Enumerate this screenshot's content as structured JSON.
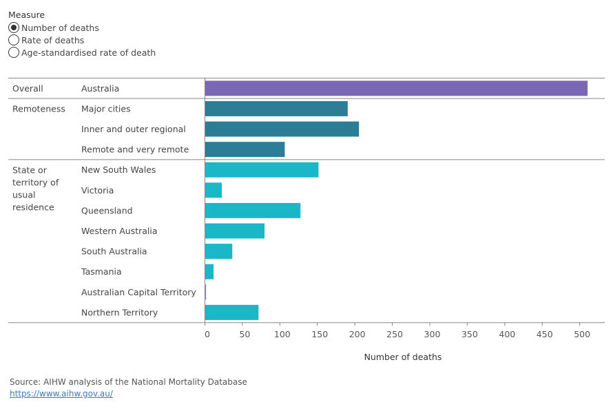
{
  "measure": {
    "title": "Measure",
    "options": [
      {
        "label": "Number of deaths",
        "selected": true
      },
      {
        "label": "Rate of deaths",
        "selected": false
      },
      {
        "label": "Age-standardised rate of death",
        "selected": false
      }
    ]
  },
  "chart_data": {
    "type": "bar",
    "orientation": "horizontal",
    "xlabel": "Number of deaths",
    "xlim": [
      0,
      515
    ],
    "xticks": [
      0,
      50,
      100,
      150,
      200,
      250,
      300,
      350,
      400,
      450,
      500
    ],
    "grid": false,
    "groups": [
      {
        "label": "Overall",
        "color": "#7b68b5",
        "rows": [
          {
            "category": "Australia",
            "value": 511
          }
        ]
      },
      {
        "label": "Remoteness",
        "color": "#2e7d96",
        "rows": [
          {
            "category": "Major cities",
            "value": 191
          },
          {
            "category": "Inner and outer regional",
            "value": 206
          },
          {
            "category": "Remote and very remote",
            "value": 107
          }
        ]
      },
      {
        "label": "State or territory of usual residence",
        "color": "#1ab8c6",
        "rows": [
          {
            "category": "New South Wales",
            "value": 152
          },
          {
            "category": "Victoria",
            "value": 23
          },
          {
            "category": "Queensland",
            "value": 128
          },
          {
            "category": "Western Australia",
            "value": 80
          },
          {
            "category": "South Australia",
            "value": 37
          },
          {
            "category": "Tasmania",
            "value": 12
          },
          {
            "category": "Australian Capital Territory",
            "value": 2
          },
          {
            "category": "Northern Territory",
            "value": 72
          }
        ]
      }
    ]
  },
  "footer": {
    "source": "Source: AIHW analysis of the National Mortality Database",
    "link": "https://www.aihw.gov.au/"
  }
}
